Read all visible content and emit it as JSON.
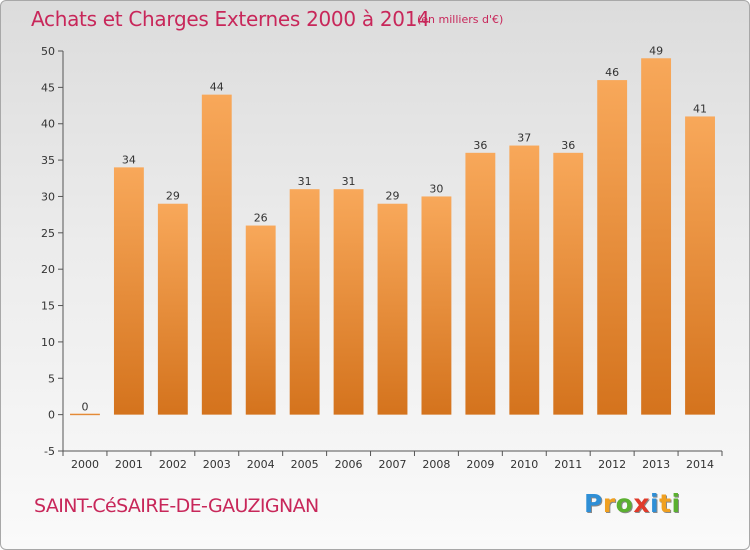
{
  "header": {
    "title": "Achats et Charges Externes 2000 à 2014",
    "subtitle": "(en milliers d'€)"
  },
  "footer": {
    "town": "SAINT-CéSAIRE-DE-GAUZIGNAN",
    "logo_letters": [
      "P",
      "r",
      "o",
      "x",
      "i",
      "t",
      "i"
    ],
    "logo_colors": [
      "#2f8fd6",
      "#f0a020",
      "#5bb030",
      "#e03a2a",
      "#2f8fd6",
      "#f0a020",
      "#5bb030"
    ]
  },
  "colors": {
    "bar_top": "#f8a85a",
    "bar_bottom": "#d4731d",
    "accent": "#c8275a"
  },
  "chart_data": {
    "type": "bar",
    "title": "Achats et Charges Externes 2000 à 2014",
    "subtitle": "(en milliers d'€)",
    "categories": [
      "2000",
      "2001",
      "2002",
      "2003",
      "2004",
      "2005",
      "2006",
      "2007",
      "2008",
      "2009",
      "2010",
      "2011",
      "2012",
      "2013",
      "2014"
    ],
    "values": [
      0,
      34,
      29,
      44,
      26,
      31,
      31,
      29,
      30,
      36,
      37,
      36,
      46,
      49,
      41
    ],
    "ylim": [
      -5,
      50
    ],
    "yticks": [
      -5,
      0,
      5,
      10,
      15,
      20,
      25,
      30,
      35,
      40,
      45,
      50
    ],
    "xlabel": "",
    "ylabel": "",
    "grid": false,
    "legend": "none"
  }
}
